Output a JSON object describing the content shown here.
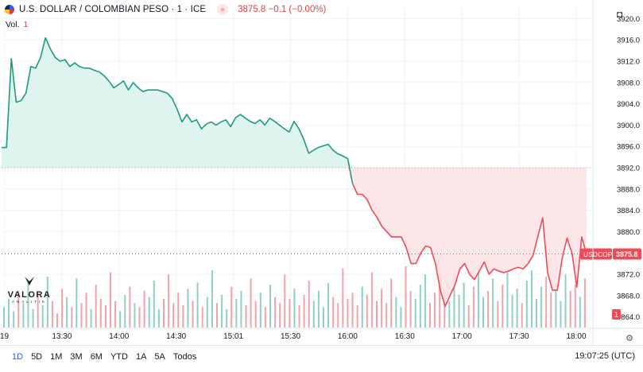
{
  "header": {
    "symbol_title": "U.S. DOLLAR / COLOMBIAN PESO · 1 · ICE",
    "market_icon": "market-status-icon",
    "quote": "3875.8  −0.1 (−0.00%)",
    "volume_label": "Vol.",
    "volume_value": "1"
  },
  "colors": {
    "up_line": "#1f9a82",
    "down_line": "#ef4a55",
    "up_fill": "#dcf3ec",
    "down_fill": "#fde3e4",
    "vol_up": "#8fd0c3",
    "vol_down": "#f3a3a8"
  },
  "logo": {
    "name": "VALORA",
    "tagline": "ANALITIK"
  },
  "chart_data": {
    "type": "area",
    "baseline": 3892.0,
    "last_price": 3875.8,
    "last_label": "USDCOP",
    "last_price_label": "3875.8",
    "volume_badge": "1",
    "ylim": [
      3862.0,
      3922.0
    ],
    "y_ticks": [
      3864.0,
      3868.0,
      3872.0,
      3876.0,
      3880.0,
      3884.0,
      3888.0,
      3892.0,
      3896.0,
      3900.0,
      3904.0,
      3908.0,
      3912.0,
      3916.0,
      3920.0
    ],
    "y_tick_labels": [
      "3864.0",
      "3868.0",
      "3872.0",
      "3876.0",
      "3880.0",
      "3884.0",
      "3888.0",
      "3892.0",
      "3896.0",
      "3900.0",
      "3904.0",
      "3908.0",
      "3912.0",
      "3916.0",
      "3920.0"
    ],
    "x_ticks": [
      "19",
      "13:30",
      "14:00",
      "14:30",
      "15:01",
      "15:30",
      "16:00",
      "16:30",
      "17:00",
      "17:30",
      "18:00"
    ],
    "series": [
      {
        "values": [
          3895.8,
          3895.8,
          3912.5,
          3904.3,
          3904.6,
          3906.0,
          3911.0,
          3910.7,
          3912.7,
          3916.4,
          3914.3,
          3912.7,
          3912.0,
          3912.3,
          3911.0,
          3911.7,
          3911.0,
          3910.7,
          3910.7,
          3910.3,
          3910.0,
          3909.3,
          3908.3,
          3907.0,
          3907.6,
          3908.3,
          3906.6,
          3908.0,
          3907.0,
          3906.3,
          3906.6,
          3906.6,
          3906.6,
          3906.3,
          3906.0,
          3905.0,
          3903.0,
          3900.6,
          3902.0,
          3900.6,
          3901.0,
          3899.3,
          3900.2,
          3900.6,
          3900.0,
          3900.6,
          3901.0,
          3899.7,
          3901.4,
          3902.0,
          3901.3,
          3900.7,
          3900.3,
          3901.0,
          3900.0,
          3901.3,
          3900.7,
          3900.0,
          3899.3,
          3898.7,
          3900.7,
          3899.3,
          3897.3,
          3894.7,
          3895.3,
          3895.8,
          3896.1,
          3896.4,
          3895.3,
          3894.6,
          3894.2,
          3893.7,
          3889.0,
          3887.0,
          3887.0,
          3886.0,
          3884.0,
          3882.7,
          3881.0,
          3880.0,
          3879.0,
          3879.0,
          3879.0,
          3877.0,
          3874.0,
          3874.0,
          3876.0,
          3877.3,
          3877.0,
          3874.0,
          3869.0,
          3866.0,
          3868.0,
          3870.0,
          3873.0,
          3874.0,
          3872.0,
          3871.0,
          3872.6,
          3874.3,
          3872.0,
          3873.0,
          3872.6,
          3872.3,
          3872.6,
          3873.0,
          3873.3,
          3873.0,
          3874.0,
          3875.5,
          3879.0,
          3882.6,
          3872.3,
          3869.0,
          3869.0,
          3875.0,
          3878.8,
          3876.0,
          3869.6,
          3879.0,
          3875.8
        ]
      }
    ],
    "volume": {
      "ymax": 30,
      "values": [
        10,
        14,
        8,
        18,
        12,
        22,
        9,
        16,
        11,
        25,
        13,
        7,
        19,
        15,
        10,
        24,
        12,
        17,
        9,
        21,
        14,
        11,
        27,
        13,
        8,
        16,
        20,
        12,
        10,
        18,
        15,
        23,
        9,
        14,
        26,
        12,
        17,
        11,
        19,
        13,
        22,
        10,
        15,
        28,
        12,
        16,
        9,
        20,
        14,
        18,
        11,
        24,
        13,
        17,
        10,
        21,
        15,
        12,
        26,
        14,
        19,
        11,
        16,
        23,
        13,
        18,
        10,
        22,
        15,
        12,
        29,
        14,
        17,
        11,
        20,
        16,
        27,
        13,
        19,
        12,
        24,
        15,
        10,
        30,
        18,
        14,
        21,
        26,
        12,
        17,
        25,
        19,
        13,
        28,
        16,
        22,
        11,
        20,
        29,
        15,
        18,
        24,
        13,
        21,
        27,
        16,
        19,
        12,
        23,
        28,
        14,
        20,
        25,
        17,
        22,
        13,
        26,
        18,
        21,
        15,
        24
      ]
    }
  },
  "bottom_bar": {
    "ranges": [
      "1D",
      "5D",
      "1M",
      "3M",
      "6M",
      "YTD",
      "1A",
      "5A",
      "Todos"
    ],
    "active": "1D",
    "clock": "19:07:25 (UTC)"
  }
}
